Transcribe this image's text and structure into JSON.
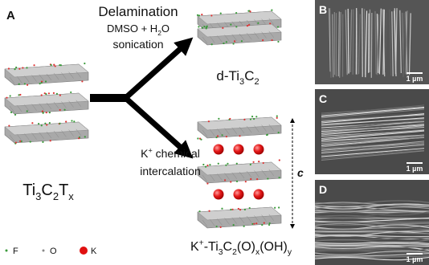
{
  "panel_label_a": "A",
  "delamination": {
    "title": "Delamination",
    "reagents": [
      {
        "text": "DMSO + H"
      },
      {
        "text": "2",
        "script": "sub"
      },
      {
        "text": "O"
      }
    ],
    "condition": "sonication"
  },
  "precursor": [
    {
      "text": "Ti"
    },
    {
      "text": "3",
      "script": "sub"
    },
    {
      "text": "C"
    },
    {
      "text": "2",
      "script": "sub"
    },
    {
      "text": "T"
    },
    {
      "text": "x",
      "script": "sub"
    }
  ],
  "delaminated_product": [
    {
      "text": "d-Ti"
    },
    {
      "text": "3",
      "script": "sub"
    },
    {
      "text": "C"
    },
    {
      "text": "2",
      "script": "sub"
    }
  ],
  "intercalation": {
    "line1": [
      {
        "text": "K"
      },
      {
        "text": "+",
        "script": "super"
      },
      {
        "text": " chemical"
      }
    ],
    "line2": "intercalation"
  },
  "spacing_label": "c",
  "intercalated_product": [
    {
      "text": "K"
    },
    {
      "text": "+",
      "script": "super"
    },
    {
      "text": "-Ti"
    },
    {
      "text": "3",
      "script": "sub"
    },
    {
      "text": "C"
    },
    {
      "text": "2",
      "script": "sub"
    },
    {
      "text": "(O)"
    },
    {
      "text": "x",
      "script": "sub"
    },
    {
      "text": "(OH)"
    },
    {
      "text": "y",
      "script": "sub"
    }
  ],
  "legend": [
    {
      "label": "F",
      "color": "#3a9a3a"
    },
    {
      "label": "O",
      "color": "#888888"
    },
    {
      "label": "K",
      "color": "#e01010"
    }
  ],
  "micrographs": [
    {
      "label": "B",
      "scale_bar": "1 µm"
    },
    {
      "label": "C",
      "scale_bar": "1 µm"
    },
    {
      "label": "D",
      "scale_bar": "1 µm"
    }
  ]
}
